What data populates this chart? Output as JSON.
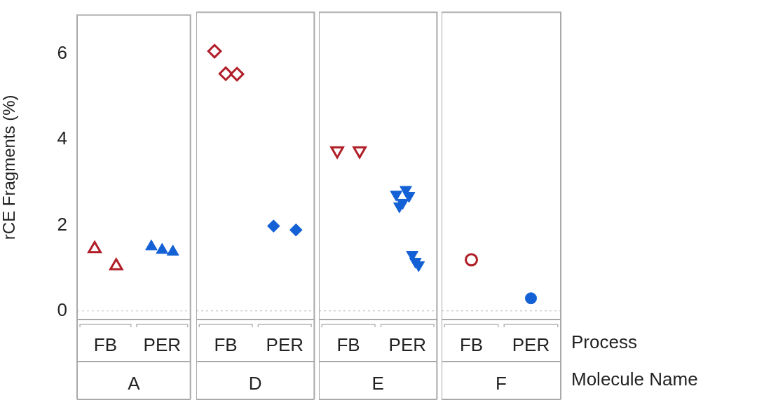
{
  "chart_data": [
    {
      "type": "scatter",
      "categories": [
        "FB",
        "PER"
      ],
      "xlabel": "A",
      "ylabel": "rCE Fragments (%)",
      "ylim": [
        -0.2,
        6.9
      ],
      "yticks": [
        0,
        2,
        4,
        6
      ],
      "marker": "triangle",
      "ref_lines": [
        {
          "axis": "y",
          "value": 0,
          "line_style": "dotted",
          "color": "#c0c0c0"
        }
      ],
      "series": [
        {
          "color": "#b01e28",
          "x": [
            "FB",
            "FB"
          ],
          "values": [
            1.45,
            1.05
          ]
        },
        {
          "color": "#1461d6",
          "x": [
            "PER",
            "PER",
            "PER"
          ],
          "values": [
            1.5,
            1.42,
            1.38
          ]
        }
      ]
    },
    {
      "type": "scatter",
      "categories": [
        "FB",
        "PER"
      ],
      "xlabel": "D",
      "ylim": [
        -0.2,
        6.9
      ],
      "yticks": [
        0,
        2,
        4,
        6
      ],
      "tick_labels": "x",
      "marker": "diamond",
      "ref_lines": [
        {
          "axis": "y",
          "value": 0,
          "line_style": "dotted",
          "color": "#c0c0c0"
        }
      ],
      "series": [
        {
          "color": "#b01e28",
          "x": [
            "FB",
            "FB",
            "FB"
          ],
          "values": [
            6.0,
            5.48,
            5.47
          ]
        },
        {
          "color": "#1461d6",
          "x": [
            "PER",
            "PER"
          ],
          "values": [
            1.96,
            1.87
          ]
        }
      ]
    },
    {
      "type": "scatter",
      "categories": [
        "FB",
        "PER"
      ],
      "xlabel": "E",
      "ylim": [
        -0.2,
        6.9
      ],
      "yticks": [
        0,
        2,
        4,
        6
      ],
      "tick_labels": "x",
      "marker": "triangle-down",
      "ref_lines": [
        {
          "axis": "y",
          "value": 0,
          "line_style": "dotted",
          "color": "#c0c0c0"
        }
      ],
      "series": [
        {
          "color": "#b01e28",
          "x": [
            "FB",
            "FB"
          ],
          "values": [
            3.7,
            3.7
          ]
        },
        {
          "color": "#1461d6",
          "x": [
            "PER",
            "PER",
            "PER",
            "PER",
            "PER",
            "PER",
            "PER",
            "PER"
          ],
          "values": [
            2.69,
            2.42,
            2.5,
            2.8,
            2.66,
            1.3,
            1.14,
            1.06
          ]
        }
      ]
    },
    {
      "type": "scatter",
      "categories": [
        "FB",
        "PER"
      ],
      "xlabel": "F",
      "ylim": [
        -0.2,
        6.9
      ],
      "yticks": [
        0,
        2,
        4,
        6
      ],
      "tick_labels": "x",
      "marker": "circle",
      "ref_lines": [
        {
          "axis": "y",
          "value": 0,
          "line_style": "dotted",
          "color": "#c0c0c0"
        }
      ],
      "annotations": [
        "Process",
        "Molecule Name"
      ],
      "series": [
        {
          "color": "#b01e28",
          "x": [
            "FB"
          ],
          "values": [
            1.18
          ]
        },
        {
          "color": "#1461d6",
          "x": [
            "PER"
          ],
          "values": [
            0.29
          ]
        }
      ]
    }
  ]
}
